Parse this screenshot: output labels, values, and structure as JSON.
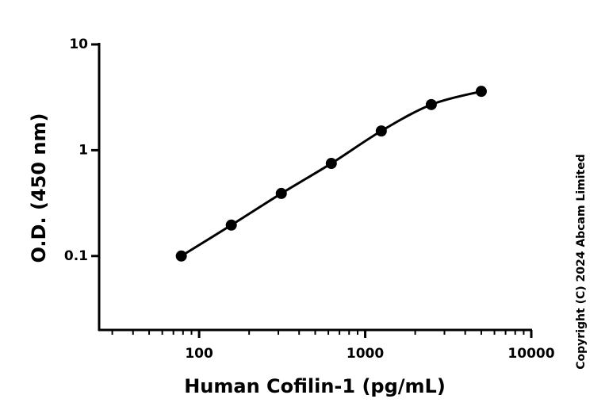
{
  "chart_data": {
    "type": "scatter",
    "xlabel": "Human Cofilin-1 (pg/mL)",
    "ylabel": "O.D. (450 nm)",
    "copyright": "Copyright (C) 2024 Abcam Limited",
    "x": [
      78.125,
      156.25,
      312.5,
      625,
      1250,
      2500,
      5000
    ],
    "values": [
      0.1,
      0.196,
      0.39,
      0.75,
      1.52,
      2.7,
      3.6
    ],
    "color": "#000000",
    "fit_line": true,
    "xlog": true,
    "ylog": true,
    "xlim": [
      25,
      10000
    ],
    "ylim": [
      0.02,
      10
    ],
    "xticks": [
      100,
      1000,
      10000
    ],
    "yticks": [
      0.1,
      1,
      10
    ]
  }
}
